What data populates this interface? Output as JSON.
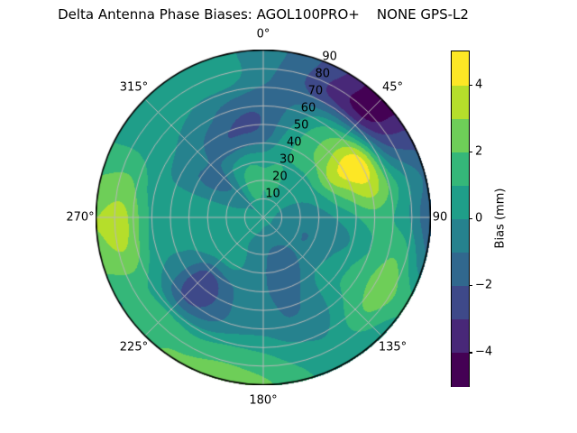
{
  "title": "Delta Antenna Phase Biases: AGOL100PRO+    NONE GPS-L2",
  "chart_data": {
    "type": "heatmap",
    "projection": "polar",
    "title": "Delta Antenna Phase Biases: AGOL100PRO+    NONE GPS-L2",
    "units": "mm",
    "angle_labels": [
      "0°",
      "45°",
      "90",
      "135°",
      "180°",
      "225°",
      "270°",
      "315°"
    ],
    "angle_degrees": [
      0,
      45,
      90,
      135,
      180,
      225,
      270,
      315
    ],
    "radial_ticks": [
      10,
      20,
      30,
      40,
      50,
      60,
      70,
      80,
      90
    ],
    "radial_label_angle_deg": 22.5,
    "radial_range": [
      0,
      90
    ],
    "azimuth_grid_deg": [
      0,
      15,
      30,
      45,
      60,
      75,
      90,
      105,
      120,
      135,
      150,
      165,
      180,
      195,
      210,
      225,
      240,
      255,
      270,
      285,
      300,
      315,
      330,
      345
    ],
    "zenith_grid_deg": [
      0,
      15,
      30,
      45,
      60,
      75,
      90
    ],
    "bias_mm": [
      [
        0.3,
        0.3,
        0.3,
        0.3,
        0.3,
        0.3,
        0.3,
        0.3,
        0.3,
        0.3,
        0.3,
        0.3,
        0.3,
        0.3,
        0.3,
        0.3,
        0.3,
        0.3,
        0.3,
        0.3,
        0.3,
        0.3,
        0.3,
        0.3
      ],
      [
        1.0,
        1.2,
        0.8,
        0.4,
        0.1,
        -0.3,
        -0.6,
        -0.8,
        -0.8,
        -0.8,
        -0.9,
        -0.9,
        -0.7,
        -0.3,
        0.0,
        0.2,
        0.3,
        0.3,
        0.3,
        0.1,
        -0.2,
        -0.4,
        0.9,
        1.3
      ],
      [
        0.8,
        1.0,
        0.9,
        0.8,
        0.8,
        0.2,
        -0.5,
        -0.9,
        -0.9,
        -0.8,
        -1.3,
        -1.4,
        -0.9,
        -0.4,
        0.2,
        0.4,
        0.5,
        0.5,
        0.4,
        0.2,
        -1.0,
        -1.2,
        0.3,
        0.9
      ],
      [
        -1.6,
        0.2,
        1.5,
        2.5,
        3.8,
        2.2,
        0.5,
        -0.2,
        0.3,
        0.5,
        -0.8,
        -1.2,
        -0.8,
        -0.6,
        -1.8,
        -2.6,
        -0.5,
        0.3,
        0.5,
        0.3,
        -0.8,
        -0.9,
        -1.8,
        -1.9
      ],
      [
        -1.8,
        -0.8,
        0.5,
        2.0,
        4.5,
        3.5,
        1.5,
        1.0,
        1.5,
        1.0,
        -0.5,
        -0.8,
        -0.3,
        -0.5,
        -1.5,
        -2.2,
        -0.3,
        0.5,
        0.8,
        0.5,
        0.2,
        -0.2,
        -0.8,
        -1.7
      ],
      [
        -0.8,
        -1.8,
        -3.2,
        -3.8,
        -1.5,
        0.8,
        0.5,
        1.8,
        2.5,
        1.8,
        0.2,
        0.5,
        1.2,
        1.5,
        1.2,
        1.5,
        1.2,
        2.8,
        3.2,
        2.2,
        0.8,
        0.5,
        0.2,
        0.2
      ],
      [
        -0.5,
        -1.5,
        -3.0,
        -4.6,
        -2.8,
        -1.2,
        -1.8,
        -0.8,
        1.2,
        0.3,
        0.2,
        1.2,
        2.2,
        2.5,
        2.2,
        1.8,
        1.0,
        2.5,
        3.0,
        2.0,
        0.8,
        0.5,
        0.3,
        0.2
      ]
    ],
    "levels": [
      -5,
      -4,
      -3,
      -2,
      -1,
      0,
      1,
      2,
      3,
      4,
      5
    ],
    "band_colors": [
      "#440154",
      "#482878",
      "#3e4989",
      "#31688e",
      "#26828e",
      "#1f9e89",
      "#35b779",
      "#6ece58",
      "#b5de2b",
      "#fde725"
    ],
    "grid_color": "#b8b8b8",
    "outline_color": "#000000",
    "colorbar": {
      "label": "Bias (mm)",
      "range": [
        -5,
        5
      ],
      "ticks": [
        {
          "value": 4,
          "label": "4"
        },
        {
          "value": 2,
          "label": "2"
        },
        {
          "value": 0,
          "label": "0"
        },
        {
          "value": -2,
          "label": "−2"
        },
        {
          "value": -4,
          "label": "−4"
        }
      ]
    }
  }
}
